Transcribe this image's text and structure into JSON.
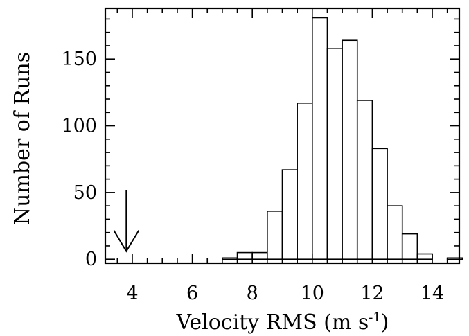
{
  "chart_data": {
    "type": "bar",
    "histogram": true,
    "xlabel": "Velocity RMS (m s",
    "xlabel_superscript": "-1",
    "xlabel_suffix": ")",
    "ylabel": "Number of Runs",
    "xlim": [
      3.1,
      14.9
    ],
    "ylim": [
      -3,
      188
    ],
    "xticks": [
      "4",
      "6",
      "8",
      "10",
      "12",
      "14"
    ],
    "yticks": [
      "0",
      "50",
      "100",
      "150"
    ],
    "bin_edges": [
      6.5,
      7.0,
      7.5,
      8.0,
      8.5,
      9.0,
      9.5,
      10.0,
      10.5,
      11.0,
      11.5,
      12.0,
      12.5,
      13.0,
      13.5,
      14.0,
      14.5
    ],
    "values": [
      0,
      1,
      5,
      5,
      36,
      67,
      117,
      181,
      158,
      164,
      119,
      83,
      40,
      19,
      4,
      0,
      1
    ],
    "marker": {
      "type": "arrow",
      "x": 3.8,
      "y_from": 52,
      "y_to": 6
    },
    "grid": false,
    "legend": "none"
  }
}
